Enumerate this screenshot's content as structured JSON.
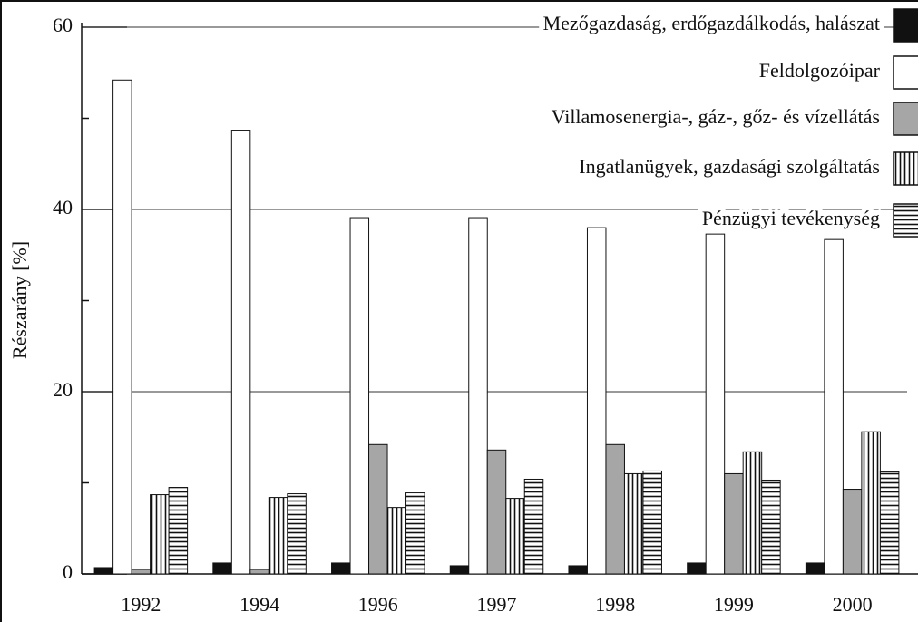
{
  "chart_data": {
    "type": "bar",
    "y_label": "Részarány [%]",
    "categories": [
      "1992",
      "1994",
      "1996",
      "1997",
      "1998",
      "1999",
      "2000"
    ],
    "series": [
      {
        "name": "Mezőgazdaság, erdőgazdálkodás, halászat",
        "color": "#111111",
        "pattern": "solid",
        "values": [
          0.7,
          1.2,
          1.2,
          0.9,
          0.9,
          1.2,
          1.2
        ]
      },
      {
        "name": "Feldolgozóipar",
        "color": "#ffffff",
        "pattern": "solid",
        "values": [
          54.2,
          48.7,
          39.1,
          39.1,
          38.0,
          37.3,
          36.7
        ]
      },
      {
        "name": "Villamosenergia-, gáz-, gőz- és vízellátás",
        "color": "#a6a6a6",
        "pattern": "solid",
        "values": [
          0.5,
          0.5,
          14.2,
          13.6,
          14.2,
          11.0,
          9.3
        ]
      },
      {
        "name": "Ingatlanügyek, gazdasági szolgáltatás",
        "color": "#111111",
        "pattern": "vertical",
        "values": [
          8.7,
          8.4,
          7.3,
          8.3,
          11.0,
          13.4,
          15.6
        ]
      },
      {
        "name": "Pénzügyi tevékenység",
        "color": "#111111",
        "pattern": "horizontal",
        "values": [
          9.5,
          8.8,
          8.9,
          10.4,
          11.3,
          10.3,
          11.2
        ]
      }
    ],
    "ylim": [
      0,
      60
    ],
    "yticks": [
      0,
      20,
      40,
      60
    ],
    "minor_yticks": [
      10,
      30,
      50
    ],
    "grid": true,
    "legend": "top-right"
  }
}
